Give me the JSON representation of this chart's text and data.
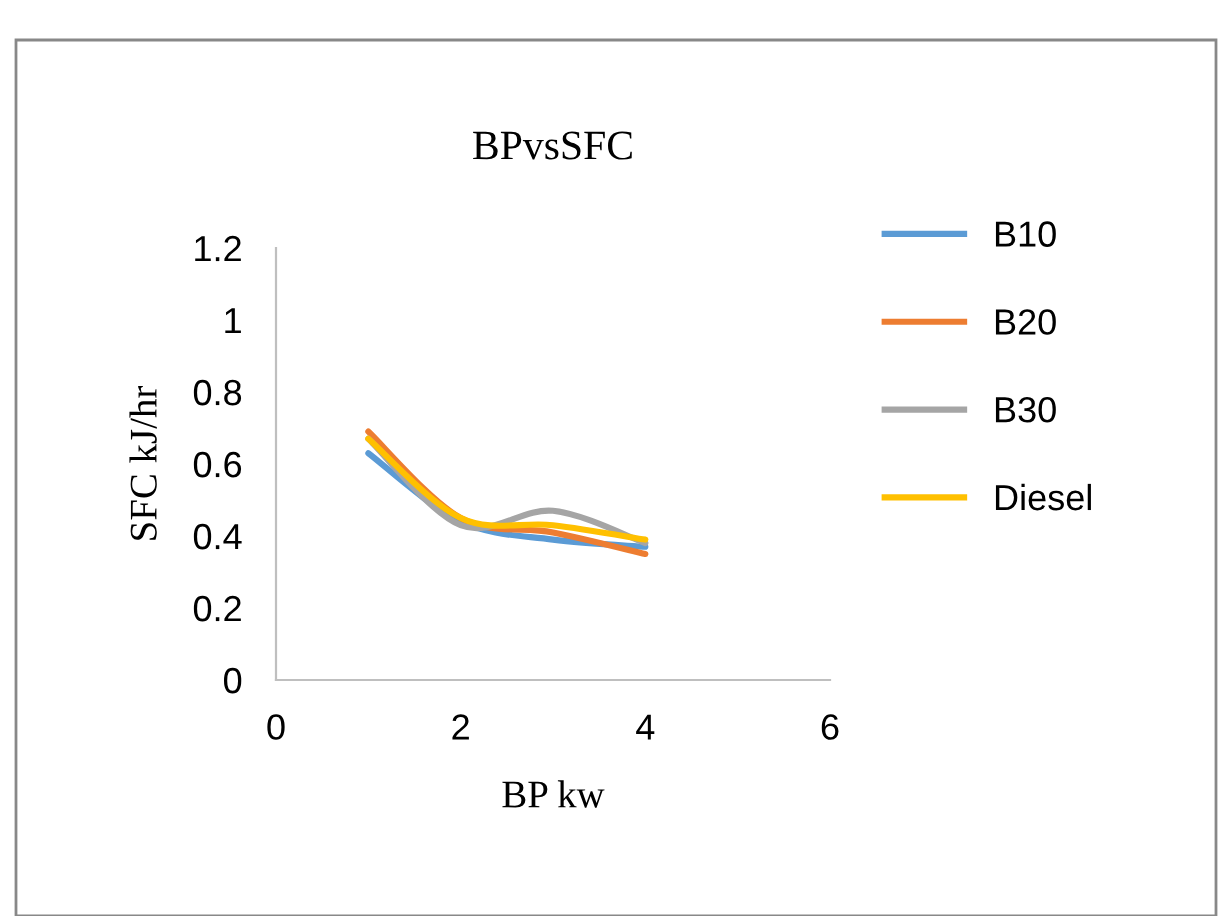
{
  "chart_data": {
    "type": "line",
    "title": "BPvsSFC",
    "xlabel": "BP kw",
    "ylabel": "SFC kJ/hr",
    "x": [
      1,
      2,
      3,
      4
    ],
    "series": [
      {
        "name": "B10",
        "color": "#5b9bd5",
        "values": [
          0.63,
          0.44,
          0.39,
          0.37
        ]
      },
      {
        "name": "B20",
        "color": "#ed7d31",
        "values": [
          0.69,
          0.45,
          0.41,
          0.35
        ]
      },
      {
        "name": "B30",
        "color": "#a5a5a5",
        "values": [
          0.67,
          0.43,
          0.47,
          0.38
        ]
      },
      {
        "name": "Diesel",
        "color": "#ffc000",
        "values": [
          0.67,
          0.45,
          0.43,
          0.39
        ]
      }
    ],
    "xlim": [
      0,
      6
    ],
    "xticks": [
      0,
      2,
      4,
      6
    ],
    "ylim": [
      0,
      1.2
    ],
    "yticks": [
      0,
      0.2,
      0.4,
      0.6,
      0.8,
      1,
      1.2
    ],
    "grid": false,
    "legend": "right",
    "marker": "none",
    "line_style": "solid"
  }
}
